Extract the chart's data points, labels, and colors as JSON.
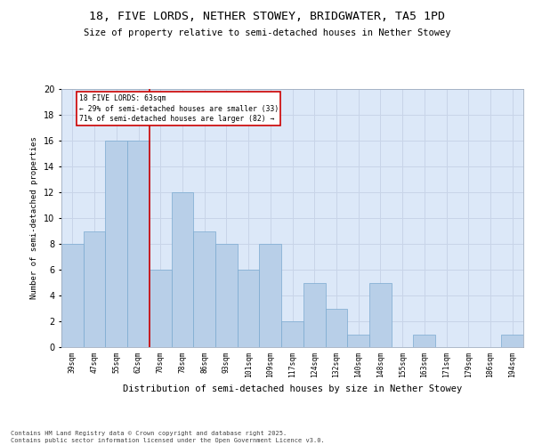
{
  "title1": "18, FIVE LORDS, NETHER STOWEY, BRIDGWATER, TA5 1PD",
  "title2": "Size of property relative to semi-detached houses in Nether Stowey",
  "xlabel": "Distribution of semi-detached houses by size in Nether Stowey",
  "ylabel": "Number of semi-detached properties",
  "categories": [
    "39sqm",
    "47sqm",
    "55sqm",
    "62sqm",
    "70sqm",
    "78sqm",
    "86sqm",
    "93sqm",
    "101sqm",
    "109sqm",
    "117sqm",
    "124sqm",
    "132sqm",
    "140sqm",
    "148sqm",
    "155sqm",
    "163sqm",
    "171sqm",
    "179sqm",
    "186sqm",
    "194sqm"
  ],
  "values": [
    8,
    9,
    16,
    16,
    6,
    12,
    9,
    8,
    6,
    8,
    2,
    5,
    3,
    1,
    5,
    0,
    1,
    0,
    0,
    0,
    1
  ],
  "bar_color": "#b8cfe8",
  "bar_edge_color": "#7aaad0",
  "grid_color": "#c8d4e8",
  "background_color": "#dce8f8",
  "vline_x": 3.5,
  "vline_color": "#cc0000",
  "annotation_title": "18 FIVE LORDS: 63sqm",
  "annotation_line1": "← 29% of semi-detached houses are smaller (33)",
  "annotation_line2": "71% of semi-detached houses are larger (82) →",
  "annotation_box_color": "#cc0000",
  "ylim": [
    0,
    20
  ],
  "yticks": [
    0,
    2,
    4,
    6,
    8,
    10,
    12,
    14,
    16,
    18,
    20
  ],
  "footer1": "Contains HM Land Registry data © Crown copyright and database right 2025.",
  "footer2": "Contains public sector information licensed under the Open Government Licence v3.0."
}
